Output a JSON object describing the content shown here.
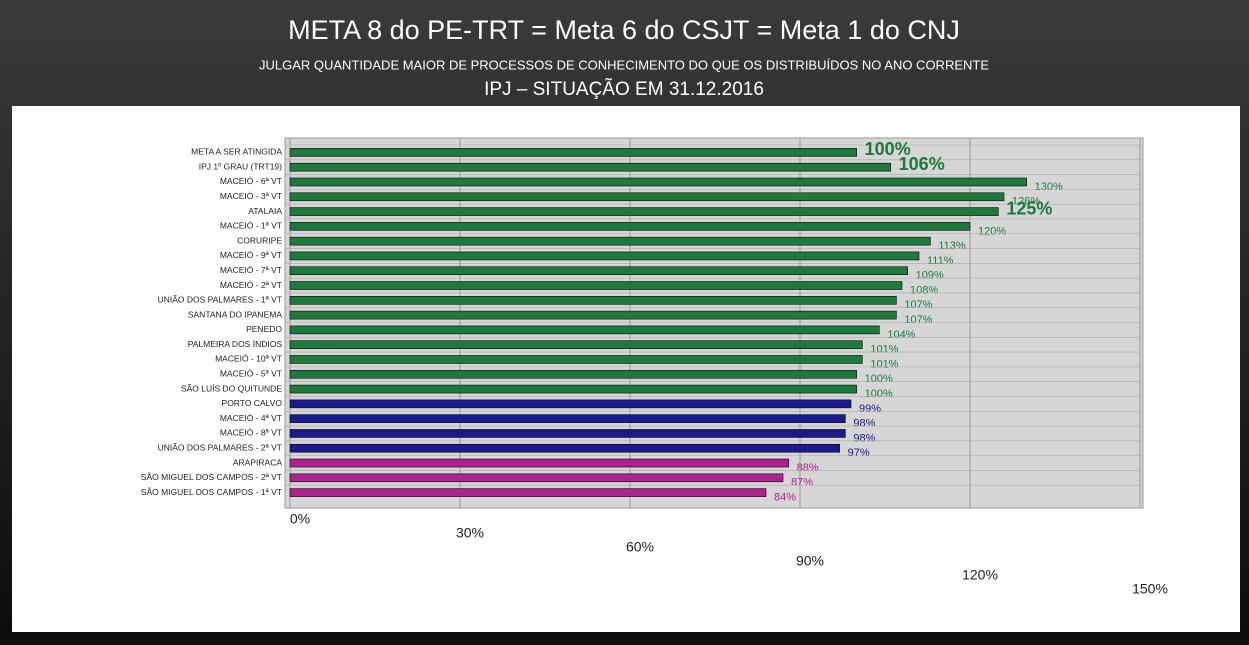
{
  "chart_data": {
    "type": "bar",
    "orientation": "horizontal",
    "title": "META 8 do PE-TRT = Meta 6 do CSJT = Meta 1 do CNJ",
    "subtitle": "JULGAR QUANTIDADE MAIOR DE PROCESSOS DE CONHECIMENTO DO QUE OS DISTRIBUÍDOS NO ANO CORRENTE",
    "subtitle2": "IPJ – SITUAÇÃO EM 31.12.2016",
    "categories": [
      "META A SER ATINGIDA",
      "IPJ 1º GRAU (TRT19)",
      "MACEIÓ - 6ª VT",
      "MACEIÓ - 3ª VT",
      "ATALAIA",
      "MACEIÓ - 1ª VT",
      "CORURIPE",
      "MACEIÓ - 9ª VT",
      "MACEIÓ - 7ª VT",
      "MACEIÓ - 2ª VT",
      "UNIÃO DOS PALMARES - 1ª VT",
      "SANTANA DO IPANEMA",
      "PENEDO",
      "PALMEIRA DOS ÍNDIOS",
      "MACEIÓ - 10ª VT",
      "MACEIÓ - 5ª VT",
      "SÃO LUÍS DO QUITUNDE",
      "PORTO CALVO",
      "MACEIÓ - 4ª VT",
      "MACEIÓ - 8ª VT",
      "UNIÃO DOS PALMARES - 2ª VT",
      "ARAPIRACA",
      "SÃO MIGUEL DOS CAMPOS - 2ª VT",
      "SÃO MIGUEL DOS CAMPOS - 1ª VT"
    ],
    "values": [
      100,
      106,
      130,
      126,
      125,
      120,
      113,
      111,
      109,
      108,
      107,
      107,
      104,
      101,
      101,
      100,
      100,
      99,
      98,
      98,
      97,
      88,
      87,
      84
    ],
    "value_labels": [
      "100%",
      "106%",
      "130%",
      "126%",
      "125%",
      "120%",
      "113%",
      "111%",
      "109%",
      "108%",
      "107%",
      "107%",
      "104%",
      "101%",
      "101%",
      "100%",
      "100%",
      "99%",
      "98%",
      "98%",
      "97%",
      "88%",
      "87%",
      "84%"
    ],
    "colors": [
      "#1e7a3c",
      "#1e7a3c",
      "#1e7a3c",
      "#1e7a3c",
      "#1e7a3c",
      "#1e7a3c",
      "#1e7a3c",
      "#1e7a3c",
      "#1e7a3c",
      "#1e7a3c",
      "#1e7a3c",
      "#1e7a3c",
      "#1e7a3c",
      "#1e7a3c",
      "#1e7a3c",
      "#1e7a3c",
      "#1e7a3c",
      "#1a1a8c",
      "#1a1a8c",
      "#1a1a8c",
      "#1a1a8c",
      "#b0208f",
      "#b0208f",
      "#b0208f"
    ],
    "xlim": [
      0,
      150
    ],
    "xticks": [
      {
        "value": 0,
        "label": "0%"
      },
      {
        "value": 30,
        "label": "30%"
      },
      {
        "value": 60,
        "label": "60%"
      },
      {
        "value": 90,
        "label": "90%"
      },
      {
        "value": 120,
        "label": "120%"
      },
      {
        "value": 150,
        "label": "150%"
      }
    ],
    "grid": true
  }
}
